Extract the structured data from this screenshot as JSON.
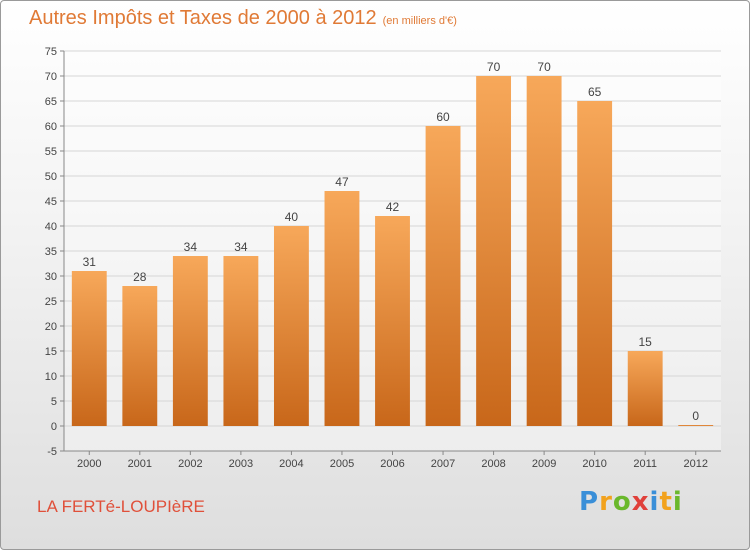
{
  "header": {
    "title": "Autres Impôts et Taxes de 2000 à 2012",
    "unit": "(en milliers d'€)"
  },
  "commune": "LA FERTé-LOUPIèRE",
  "brand": {
    "letters": [
      "P",
      "r",
      "o",
      "x",
      "i",
      "t",
      "i"
    ],
    "colors": [
      "#3a8fd8",
      "#f2a21d",
      "#6ab82c",
      "#e0403a",
      "#3a8fd8",
      "#f2a21d",
      "#6ab82c"
    ]
  },
  "colors": {
    "bar_top": "#f7a85a",
    "bar_bottom": "#c8671a",
    "grid": "#d6d6d6",
    "axis": "#888888"
  },
  "chart_data": {
    "type": "bar",
    "title": "Autres Impôts et Taxes de 2000 à 2012",
    "subtitle": "(en milliers d'€)",
    "xlabel": "",
    "ylabel": "",
    "categories": [
      "2000",
      "2001",
      "2002",
      "2003",
      "2004",
      "2005",
      "2006",
      "2007",
      "2008",
      "2009",
      "2010",
      "2011",
      "2012"
    ],
    "values": [
      31,
      28,
      34,
      34,
      40,
      47,
      42,
      60,
      70,
      70,
      65,
      15,
      0
    ],
    "ylim": [
      -5,
      75
    ],
    "yticks": [
      -5,
      0,
      5,
      10,
      15,
      20,
      25,
      30,
      35,
      40,
      45,
      50,
      55,
      60,
      65,
      70,
      75
    ],
    "grid": true,
    "legend": "none"
  }
}
